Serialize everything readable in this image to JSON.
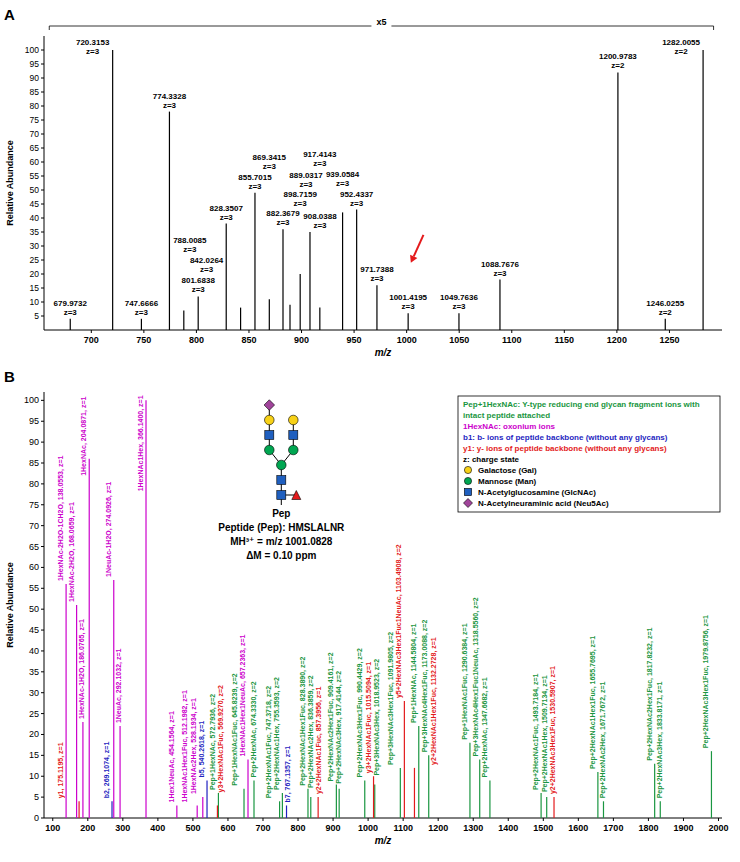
{
  "chart_data": [
    {
      "type": "stem",
      "panel": "A",
      "x_label": "m/z",
      "y_label": "Relative Abundance",
      "xlim": [
        655,
        1300
      ],
      "xticks": [
        700,
        750,
        800,
        850,
        900,
        950,
        1000,
        1050,
        1100,
        1150,
        1200,
        1250
      ],
      "ylim": [
        0,
        105
      ],
      "yticks": [
        5,
        10,
        15,
        20,
        25,
        30,
        35,
        40,
        45,
        50,
        55,
        60,
        65,
        70,
        75,
        80,
        85,
        90,
        95,
        100
      ],
      "color": "#000000",
      "x": [
        679.9732,
        720.3153,
        747.6666,
        774.3328,
        788.0085,
        801.6838,
        828.3507,
        842.0264,
        855.7015,
        869.3415,
        882.3679,
        889.0317,
        898.7159,
        908.0388,
        917.4143,
        939.0584,
        952.4337,
        971.7388,
        1001.4195,
        1049.7636,
        1088.7676,
        1200.9783,
        1246.0255,
        1282.0055
      ],
      "values": [
        4,
        100,
        4,
        78,
        7,
        12,
        38,
        8,
        49,
        11,
        36,
        9,
        20,
        35,
        8,
        42,
        43,
        16,
        6,
        6,
        18,
        92,
        4,
        100
      ],
      "labels": [
        "679.9732",
        "720.3153",
        "747.6666",
        "774.3328",
        "788.0085",
        "801.6838",
        "828.3507",
        "842.0264",
        "855.7015",
        "869.3415",
        "882.3679",
        "889.0317",
        "898.7159",
        "908.0388",
        "917.4143",
        "939.0584",
        "952.4337",
        "971.7388",
        "1001.4195",
        "1049.7636",
        "1088.7676",
        "1200.9783",
        "1246.0255",
        "1282.0055"
      ],
      "charges": [
        "z=3",
        "z=3",
        "z=3",
        "z=3",
        "z=3",
        "z=3",
        "z=3",
        "z=3",
        "z=3",
        "z=3",
        "z=3",
        "z=3",
        "z=3",
        "z=3",
        "z=3",
        "z=3",
        "z=3",
        "z=3",
        "z=3",
        "z=3",
        "z=3",
        "z=2",
        "z=2",
        "z=2"
      ],
      "magnification": {
        "label": "x5",
        "x": [
          660,
          1292
        ]
      },
      "annotations": [
        {
          "type": "arrow",
          "color": "#e41a1c",
          "x": [
            1016,
            1004
          ],
          "y": [
            34,
            24
          ]
        }
      ]
    },
    {
      "type": "stem",
      "panel": "B",
      "x_label": "m/z",
      "y_label": "Relative Abundance",
      "xlim": [
        75,
        2010
      ],
      "xticks": [
        100,
        200,
        300,
        400,
        500,
        600,
        700,
        800,
        900,
        1000,
        1100,
        1200,
        1300,
        1400,
        1500,
        1600,
        1700,
        1800,
        1900,
        2000
      ],
      "ylim": [
        0,
        102
      ],
      "yticks": [
        0,
        5,
        10,
        15,
        20,
        25,
        30,
        35,
        40,
        45,
        50,
        55,
        60,
        65,
        70,
        75,
        80,
        85,
        90,
        95,
        100
      ],
      "legend": "upper right",
      "series": [
        {
          "name": "Pep+1HexNAc: Y-type reducing end glycan fragment ions with intact peptide attached",
          "color": "#1a9641",
          "x": [
            572.7936,
            645.8239,
            674.333,
            747.3718,
            755.3593,
            828.389,
            836.3859,
            909.4161,
            917.4144,
            990.4429,
            1018.9523,
            1091.9805,
            1144.5804,
            1173.0088,
            1290.6384,
            1318.556,
            1347.6682,
            1493.7184,
            1509.7134,
            1655.7695,
            1671.7672,
            1817.8232,
            1833.8171,
            1979.8756
          ],
          "values": [
            6,
            7,
            9,
            4,
            6,
            7,
            5,
            8,
            7,
            9,
            8,
            12,
            22,
            15,
            18,
            14,
            9,
            6,
            5,
            11,
            4,
            13,
            4,
            16
          ],
          "labels": [
            "Pep+1HexNAc, 572.7936, z=2",
            "Pep+1HexNAc1Fuc, 645.8239, z=2",
            "Pep+2HexNAc, 674.3330, z=2",
            "Pep+2HexNAc1Fuc, 747.3718, z=2",
            "Pep+2HexNAc1Hex, 755.3593, z=2",
            "Pep+2HexNAc1Hex1Fuc, 828.3890, z=2",
            "Pep+2HexNAc2Hex, 836.3859, z=2",
            "Pep+2HexNAc2Hex1Fuc, 909.4161, z=2",
            "Pep+2HexNAc3Hex, 917.4144, z=2",
            "Pep+2HexNAc3Hex1Fuc, 990.4429, z=2",
            "Pep+3HexNAc3Hex, 1018.9523, z=2",
            "Pep+3HexNAc3Hex1Fuc, 1091.9805, z=2",
            "Pep+1HexNAc, 1144.5804, z=1",
            "Pep+3HexNAc4Hex1Fuc, 1173.0088, z=2",
            "Pep+1HexNAc1Fuc, 1290.6384, z=1",
            "Pep+3HexNAc4Hex1Fuc1NeuAc, 1318.5560, z=2",
            "Pep+2HexNAc, 1347.6682, z=1",
            "Pep+2HexNAc1Fuc, 1493.7184, z=1",
            "Pep+2HexNAc1Hex, 1509.7134, z=1",
            "Pep+2HexNAc1Hex1Fuc, 1655.7695, z=1",
            "Pep+2HexNAc2Hex, 1671.7672, z=1",
            "Pep+2HexNAc2Hex1Fuc, 1817.8232, z=1",
            "Pep+2HexNAc3Hex, 1833.8171, z=1",
            "Pep+2HexNAc3Hex1Fuc, 1979.8756, z=1"
          ]
        },
        {
          "name": "1HexNAc: oxonium ions",
          "color": "#cc00cc",
          "x": [
            138.0553,
            168.0659,
            186.0765,
            204.0871,
            274.0926,
            292.1032,
            366.14,
            454.1564,
            512.1982,
            528.1934,
            657.2363
          ],
          "values": [
            56,
            51,
            23,
            86,
            57,
            22,
            100,
            3,
            3,
            5,
            14
          ],
          "labels": [
            "1HexNAc-2H2O-1CH2O, 138.0553, z=1",
            "1HexNAc-2H2O, 168.0659, z=1",
            "1HexNAc-1H2O, 186.0765, z=1",
            "1HexNAc, 204.0871, z=1",
            "1NeuAc-1H2O, 274.0926, z=1",
            "1NeuAc, 292.1032, z=1",
            "1HexNAc1Hex, 366.1400, z=1",
            "1Hex1NeuAc, 454.1564, z=1",
            "1HexNAc1Hex1Fuc, 512.1982, z=1",
            "1HexNAc2Hex, 528.1934, z=1",
            "1HexNAc1Hex1NeuAc, 657.2363, z=1"
          ]
        },
        {
          "name": "b1: b- ions of peptide backbone (without any glycans)",
          "color": "#1f1fbf",
          "x": [
            269.1074,
            540.2618,
            767.1357
          ],
          "values": [
            4,
            9,
            3
          ],
          "labels": [
            "b2, 269.1074, z=1",
            "b5, 540.2618, z=1",
            "b7, 767.1357, z=1"
          ]
        },
        {
          "name": "y1: y- ions of peptide backbone (without any glycans)",
          "color": "#e31a1c",
          "x": [
            175.1195,
            569.927,
            857.3956,
            1015.5094,
            1103.4908,
            1132.2728,
            1530.5907
          ],
          "values": [
            4,
            3,
            5,
            10,
            28,
            12,
            5
          ],
          "labels": [
            "y1, 175.1195, z=1",
            "y3+2HexNAc1Fuc, 569.9270, z=2",
            "y2+2HexNAc1Fuc, 857.3956, z=1",
            "y3+2HexNAc1Fuc, 1015.5094, z=1",
            "y5+2HexNAc3Hex1Fuc1NeuAc, 1103.4908, z=2",
            "y2+2HexNAc1Hex1Fuc, 1132.2728, z=1",
            "y2+2HexNAc3Hex1Fuc, 1530.5907, z=1"
          ]
        }
      ],
      "notes": [
        "z: charge state"
      ],
      "symbols": [
        {
          "name": "Galactose (Gal)",
          "color": "#f7d117",
          "marker": "circle"
        },
        {
          "name": "Mannose (Man)",
          "color": "#00a651",
          "marker": "circle"
        },
        {
          "name": "N-Acetylglucosamine (GlcNAc)",
          "color": "#1f5fbf",
          "marker": "square"
        },
        {
          "name": "N-Acetylneuraminic acid (Neu5Ac)",
          "color": "#a0449a",
          "marker": "diamond"
        }
      ],
      "annotations": [
        "Pep",
        "Peptide (Pep): HMSLALNR",
        "MH³⁺ = m/z 1001.0828",
        "ΔM = 0.10 ppm"
      ]
    }
  ]
}
